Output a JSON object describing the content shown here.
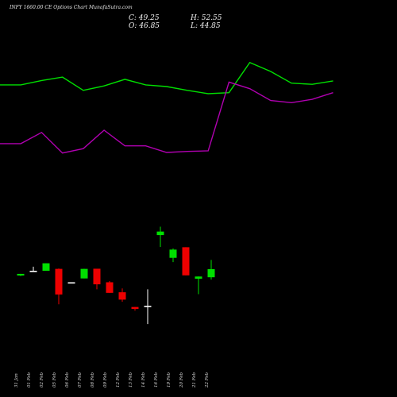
{
  "header": {
    "title": "INFY 1660.00  CE Options  Chart MunafaSutra.com",
    "close_label": "C: 49.25",
    "high_label": "H: 52.55",
    "open_label": "O: 46.85",
    "low_label": "L: 44.85"
  },
  "colors": {
    "background": "#000000",
    "up": "#00e000",
    "down": "#ee0000",
    "line_upper": "#00e000",
    "line_lower": "#b000b0",
    "neutral": "#ffffff"
  },
  "chart_data": {
    "type": "candlestick",
    "x": [
      "31 Jan",
      "01 Feb",
      "02 Feb",
      "05 Feb",
      "06 Feb",
      "07 Feb",
      "08 Feb",
      "09 Feb",
      "12 Feb",
      "13 Feb",
      "14 Feb",
      "16 Feb",
      "19 Feb",
      "20 Feb",
      "21 Feb",
      "22 Feb"
    ],
    "candles": [
      {
        "open": 19.4,
        "high": 20.5,
        "low": 19.0,
        "close": 20.5
      },
      {
        "open": 22.3,
        "high": 25.4,
        "low": 22.3,
        "close": 22.6
      },
      {
        "open": 22.6,
        "high": 27.7,
        "low": 22.6,
        "close": 27.7
      },
      {
        "open": 23.9,
        "high": 24.2,
        "low": -0.2,
        "close": 6.5
      },
      {
        "open": 14.8,
        "high": 14.8,
        "low": 14.4,
        "close": 14.6
      },
      {
        "open": 17.4,
        "high": 24.0,
        "low": 17.4,
        "close": 23.9
      },
      {
        "open": 24.0,
        "high": 24.0,
        "low": 10.0,
        "close": 13.4
      },
      {
        "open": 14.8,
        "high": 15.6,
        "low": 7.6,
        "close": 7.6
      },
      {
        "open": 8.0,
        "high": 10.6,
        "low": 1.6,
        "close": 3.0
      },
      {
        "open": -2.0,
        "high": -2.0,
        "low": -4.5,
        "close": -3.3
      },
      {
        "open": -1.5,
        "high": 10.0,
        "low": -13.6,
        "close": -1.2
      },
      {
        "open": 46.85,
        "high": 52.55,
        "low": 38.8,
        "close": 49.25
      },
      {
        "open": 31.4,
        "high": 37.8,
        "low": 28.5,
        "close": 37.0
      },
      {
        "open": 38.6,
        "high": 38.6,
        "low": 19.5,
        "close": 19.5
      },
      {
        "open": 17.2,
        "high": 18.7,
        "low": 6.7,
        "close": 18.7
      },
      {
        "open": 18.2,
        "high": 30.0,
        "low": 16.6,
        "close": 23.7
      }
    ],
    "line_upper": [
      {
        "x": 0.0,
        "y": 148.9
      },
      {
        "x": 1.9,
        "y": 148.9
      },
      {
        "x": 3.8,
        "y": 151.9
      },
      {
        "x": 5.7,
        "y": 154.2
      },
      {
        "x": 7.6,
        "y": 145.2
      },
      {
        "x": 9.5,
        "y": 148.2
      },
      {
        "x": 11.4,
        "y": 152.7
      },
      {
        "x": 13.3,
        "y": 148.9
      },
      {
        "x": 15.2,
        "y": 147.8
      },
      {
        "x": 17.1,
        "y": 145.2
      },
      {
        "x": 19.0,
        "y": 142.9
      },
      {
        "x": 20.9,
        "y": 143.6
      },
      {
        "x": 22.8,
        "y": 164.1
      },
      {
        "x": 24.7,
        "y": 158.0
      },
      {
        "x": 26.6,
        "y": 150.1
      },
      {
        "x": 28.5,
        "y": 149.3
      },
      {
        "x": 30.4,
        "y": 151.6
      }
    ],
    "line_lower": [
      {
        "x": 0.0,
        "y": 109.0
      },
      {
        "x": 1.9,
        "y": 109.0
      },
      {
        "x": 3.8,
        "y": 116.6
      },
      {
        "x": 5.7,
        "y": 102.6
      },
      {
        "x": 7.6,
        "y": 105.6
      },
      {
        "x": 9.5,
        "y": 118.1
      },
      {
        "x": 11.4,
        "y": 107.5
      },
      {
        "x": 13.3,
        "y": 107.5
      },
      {
        "x": 15.2,
        "y": 103.0
      },
      {
        "x": 17.1,
        "y": 103.7
      },
      {
        "x": 19.0,
        "y": 104.1
      },
      {
        "x": 20.9,
        "y": 150.8
      },
      {
        "x": 22.8,
        "y": 146.3
      },
      {
        "x": 24.7,
        "y": 138.3
      },
      {
        "x": 26.6,
        "y": 136.8
      },
      {
        "x": 28.5,
        "y": 139.1
      },
      {
        "x": 30.4,
        "y": 143.6
      }
    ],
    "ylim": [
      -20,
      185
    ],
    "grid": false,
    "title": "INFY 1660.00  CE Options  Chart MunafaSutra.com"
  }
}
